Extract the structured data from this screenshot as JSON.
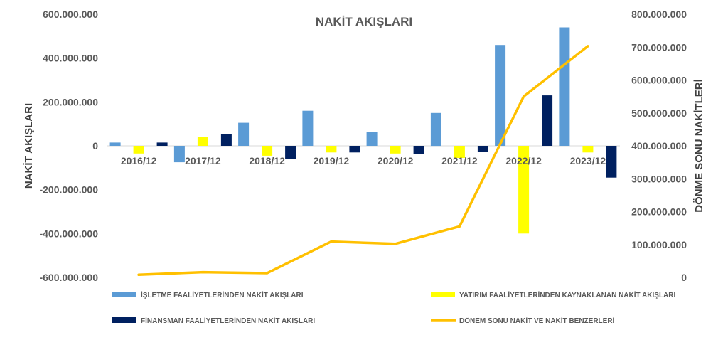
{
  "chart_data": {
    "type": "bar",
    "title": "NAKİT AKIŞLARI",
    "ylabel": "NAKİT AKIŞLARI",
    "y2label": "DÖNME SONU NAKİTLERİ",
    "ylim": [
      -600000000,
      600000000
    ],
    "y2lim": [
      0,
      800000000
    ],
    "yticks": [
      "600.000.000",
      "400.000.000",
      "200.000.000",
      "0",
      "-200.000.000",
      "-400.000.000",
      "-600.000.000"
    ],
    "y2ticks": [
      "800.000.000",
      "700.000.000",
      "600.000.000",
      "500.000.000",
      "400.000.000",
      "300.000.000",
      "200.000.000",
      "100.000.000",
      "0"
    ],
    "categories": [
      "2016/12",
      "2017/12",
      "2018/12",
      "2019/12",
      "2020/12",
      "2021/12",
      "2022/12",
      "2023/12"
    ],
    "series": [
      {
        "name": "İŞLETME FAALİYETLERİNDEN NAKİT AKIŞLARI",
        "type": "bar",
        "color": "#5B9BD5",
        "values": [
          15000000,
          -75000000,
          105000000,
          160000000,
          65000000,
          150000000,
          460000000,
          540000000
        ]
      },
      {
        "name": "YATIRIM FAALİYETLERİNDEN KAYNAKLANAN NAKİT AKIŞLARI",
        "type": "bar",
        "color": "#FFFF00",
        "values": [
          -35000000,
          40000000,
          -45000000,
          -30000000,
          -35000000,
          -55000000,
          -400000000,
          -30000000
        ]
      },
      {
        "name": "FİNANSMAN FAALİYETLERİNDEN NAKİT AKIŞLARI",
        "type": "bar",
        "color": "#002060",
        "values": [
          15000000,
          52000000,
          -60000000,
          -30000000,
          -38000000,
          -28000000,
          230000000,
          -145000000
        ]
      },
      {
        "name": "DÖNEM SONU NAKİT VE NAKİT BENZERLERİ",
        "type": "line",
        "axis": "secondary",
        "color": "#FFC000",
        "values": [
          8000000,
          16000000,
          13000000,
          109000000,
          102000000,
          155000000,
          550000000,
          703000000
        ]
      }
    ],
    "legend": "bottom",
    "grid": false
  }
}
